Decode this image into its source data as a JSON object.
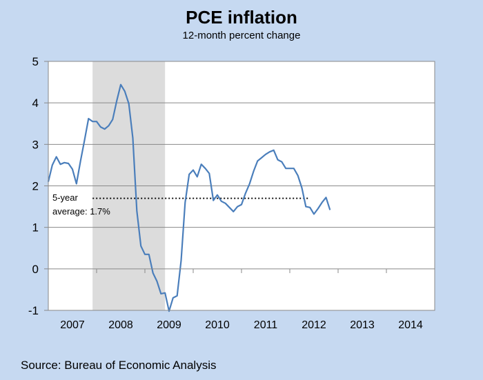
{
  "title": "PCE inflation",
  "subtitle": "12-month percent change",
  "source": "Source: Bureau of Economic Analysis",
  "annotation": {
    "line1": "5-year",
    "line2": "average: 1.7%"
  },
  "colors": {
    "background": "#c6d9f1",
    "plot_area": "#ffffff",
    "recession_shade": "#dcdcdc",
    "line": "#4a7ebb",
    "average_line": "#000000"
  },
  "chart_data": {
    "type": "line",
    "title": "PCE inflation",
    "subtitle": "12-month percent change",
    "xlabel": "",
    "ylabel": "",
    "ylim": [
      -1,
      5
    ],
    "yticks": [
      -1,
      0,
      1,
      2,
      3,
      4,
      5
    ],
    "xlim": [
      2007.0,
      2015.0
    ],
    "x_tick_labels": [
      "2007",
      "2008",
      "2009",
      "2010",
      "2011",
      "2012",
      "2013",
      "2014"
    ],
    "grid": "horizontal",
    "shaded_region": {
      "label": "recession",
      "start": 2007.917,
      "end": 2009.417
    },
    "average_line": {
      "value": 1.7,
      "start": 2007.917,
      "end": 2012.417
    },
    "series": [
      {
        "values": [
          {
            "x": 2007.0,
            "y": 2.1
          },
          {
            "x": 2007.083,
            "y": 2.5
          },
          {
            "x": 2007.167,
            "y": 2.7
          },
          {
            "x": 2007.25,
            "y": 2.52
          },
          {
            "x": 2007.333,
            "y": 2.56
          },
          {
            "x": 2007.417,
            "y": 2.54
          },
          {
            "x": 2007.5,
            "y": 2.4
          },
          {
            "x": 2007.583,
            "y": 2.05
          },
          {
            "x": 2007.667,
            "y": 2.6
          },
          {
            "x": 2007.75,
            "y": 3.1
          },
          {
            "x": 2007.833,
            "y": 3.62
          },
          {
            "x": 2007.917,
            "y": 3.55
          },
          {
            "x": 2008.0,
            "y": 3.55
          },
          {
            "x": 2008.083,
            "y": 3.42
          },
          {
            "x": 2008.167,
            "y": 3.37
          },
          {
            "x": 2008.25,
            "y": 3.45
          },
          {
            "x": 2008.333,
            "y": 3.6
          },
          {
            "x": 2008.417,
            "y": 4.05
          },
          {
            "x": 2008.5,
            "y": 4.44
          },
          {
            "x": 2008.583,
            "y": 4.28
          },
          {
            "x": 2008.667,
            "y": 3.98
          },
          {
            "x": 2008.75,
            "y": 3.15
          },
          {
            "x": 2008.833,
            "y": 1.4
          },
          {
            "x": 2008.917,
            "y": 0.55
          },
          {
            "x": 2009.0,
            "y": 0.35
          },
          {
            "x": 2009.083,
            "y": 0.35
          },
          {
            "x": 2009.167,
            "y": -0.1
          },
          {
            "x": 2009.25,
            "y": -0.3
          },
          {
            "x": 2009.333,
            "y": -0.6
          },
          {
            "x": 2009.417,
            "y": -0.58
          },
          {
            "x": 2009.5,
            "y": -1.02
          },
          {
            "x": 2009.583,
            "y": -0.7
          },
          {
            "x": 2009.667,
            "y": -0.65
          },
          {
            "x": 2009.75,
            "y": 0.2
          },
          {
            "x": 2009.833,
            "y": 1.6
          },
          {
            "x": 2009.917,
            "y": 2.28
          },
          {
            "x": 2010.0,
            "y": 2.38
          },
          {
            "x": 2010.083,
            "y": 2.22
          },
          {
            "x": 2010.167,
            "y": 2.52
          },
          {
            "x": 2010.25,
            "y": 2.42
          },
          {
            "x": 2010.333,
            "y": 2.3
          },
          {
            "x": 2010.417,
            "y": 1.65
          },
          {
            "x": 2010.5,
            "y": 1.78
          },
          {
            "x": 2010.583,
            "y": 1.63
          },
          {
            "x": 2010.667,
            "y": 1.58
          },
          {
            "x": 2010.75,
            "y": 1.48
          },
          {
            "x": 2010.833,
            "y": 1.38
          },
          {
            "x": 2010.917,
            "y": 1.5
          },
          {
            "x": 2011.0,
            "y": 1.55
          },
          {
            "x": 2011.083,
            "y": 1.82
          },
          {
            "x": 2011.167,
            "y": 2.05
          },
          {
            "x": 2011.25,
            "y": 2.35
          },
          {
            "x": 2011.333,
            "y": 2.6
          },
          {
            "x": 2011.417,
            "y": 2.68
          },
          {
            "x": 2011.5,
            "y": 2.76
          },
          {
            "x": 2011.583,
            "y": 2.82
          },
          {
            "x": 2011.667,
            "y": 2.86
          },
          {
            "x": 2011.75,
            "y": 2.63
          },
          {
            "x": 2011.833,
            "y": 2.58
          },
          {
            "x": 2011.917,
            "y": 2.42
          },
          {
            "x": 2012.0,
            "y": 2.42
          },
          {
            "x": 2012.083,
            "y": 2.42
          },
          {
            "x": 2012.167,
            "y": 2.25
          },
          {
            "x": 2012.25,
            "y": 1.95
          },
          {
            "x": 2012.333,
            "y": 1.5
          },
          {
            "x": 2012.417,
            "y": 1.48
          },
          {
            "x": 2012.5,
            "y": 1.32
          },
          {
            "x": 2012.583,
            "y": 1.45
          },
          {
            "x": 2012.667,
            "y": 1.6
          },
          {
            "x": 2012.75,
            "y": 1.72
          },
          {
            "x": 2012.833,
            "y": 1.42
          }
        ]
      }
    ]
  }
}
